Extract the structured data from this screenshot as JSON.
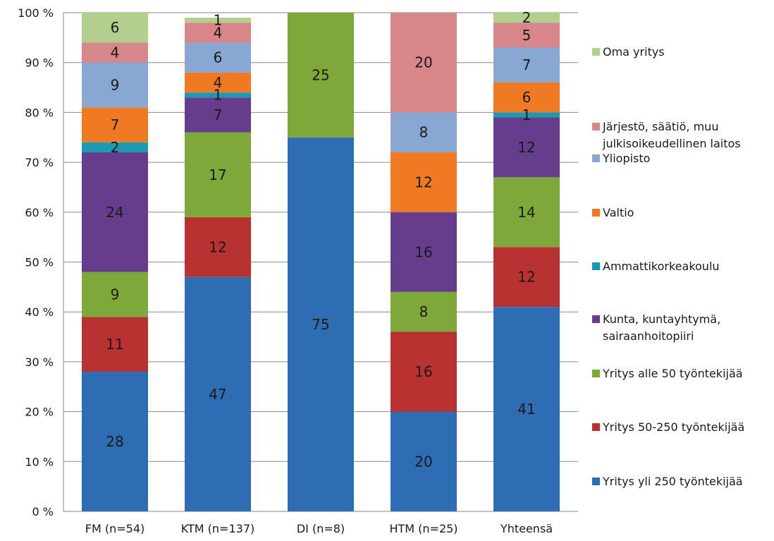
{
  "chart_data": {
    "type": "bar",
    "stacked": true,
    "percent_stacked": true,
    "title": "",
    "xlabel": "",
    "ylabel": "",
    "ylim": [
      0,
      100
    ],
    "y_ticks": [
      0,
      10,
      20,
      30,
      40,
      50,
      60,
      70,
      80,
      90,
      100
    ],
    "y_tick_labels": [
      "0 %",
      "10 %",
      "20 %",
      "30 %",
      "40 %",
      "50 %",
      "60 %",
      "70 %",
      "80 %",
      "90 %",
      "100 %"
    ],
    "grid": true,
    "legend_position": "right",
    "categories": [
      "FM (n=54)",
      "KTM (n=137)",
      "DI (n=8)",
      "HTM (n=25)",
      "Yhteensä"
    ],
    "series": [
      {
        "name": "Yritys yli 250 työntekijää",
        "color": "#2e6db4",
        "values": [
          28,
          47,
          75,
          20,
          41
        ]
      },
      {
        "name": "Yritys 50-250 työntekijää",
        "color": "#b83232",
        "values": [
          11,
          12,
          0,
          16,
          12
        ]
      },
      {
        "name": "Yritys alle 50 työntekijää",
        "color": "#7fa83a",
        "values": [
          9,
          17,
          25,
          8,
          14
        ]
      },
      {
        "name": "Kunta, kuntayhtymä, sairaanhoitopiiri",
        "color": "#653d8c",
        "values": [
          24,
          7,
          0,
          16,
          12
        ]
      },
      {
        "name": "Ammattikorkeakoulu",
        "color": "#1d9ab3",
        "values": [
          2,
          1,
          0,
          0,
          1
        ]
      },
      {
        "name": "Valtio",
        "color": "#ef7a23",
        "values": [
          7,
          4,
          0,
          12,
          6
        ]
      },
      {
        "name": "Yliopisto",
        "color": "#89a7d3",
        "values": [
          9,
          6,
          0,
          8,
          7
        ]
      },
      {
        "name": "Järjestö, säätiö, muu julkisoikeudellinen laitos",
        "color": "#d7868a",
        "values": [
          4,
          4,
          0,
          20,
          5
        ]
      },
      {
        "name": "Oma yritys",
        "color": "#b3cf8e",
        "values": [
          6,
          1,
          0,
          0,
          2
        ]
      }
    ],
    "legend_order": [
      "Oma yritys",
      "Järjestö, säätiö, muu julkisoikeudellinen laitos",
      "Yliopisto",
      "Valtio",
      "Ammattikorkeakoulu",
      "Kunta, kuntayhtymä, sairaanhoitopiiri",
      "Yritys alle 50 työntekijää",
      "Yritys 50-250 työntekijää",
      "Yritys yli 250 työntekijää"
    ]
  }
}
